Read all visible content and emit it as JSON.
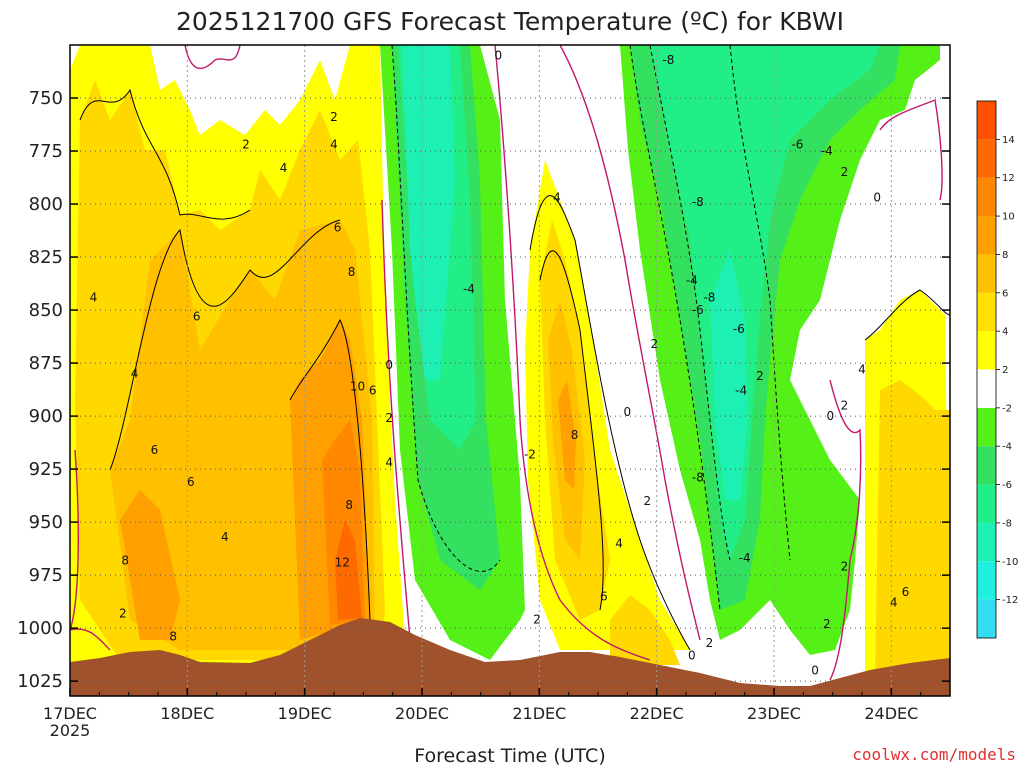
{
  "chart_data": {
    "type": "heatmap",
    "title": "2025121700 GFS Forecast Temperature (ºC) for KBWI",
    "xlabel": "Forecast Time (UTC)",
    "ylabel": "",
    "credit": "coolwx.com/models",
    "x_ticks": [
      "17DEC",
      "18DEC",
      "19DEC",
      "20DEC",
      "21DEC",
      "22DEC",
      "23DEC",
      "24DEC"
    ],
    "x_year": "2025",
    "xlim_days": [
      0,
      7.5
    ],
    "y_ticks": [
      750,
      775,
      800,
      825,
      850,
      875,
      900,
      925,
      950,
      975,
      1000,
      1025
    ],
    "ylim_hpa": [
      725,
      1032
    ],
    "colorbar": {
      "levels": [
        -14,
        -12,
        -10,
        -8,
        -6,
        -4,
        -2,
        2,
        4,
        6,
        8,
        10,
        12,
        14,
        16
      ],
      "tick_labels": [
        14,
        12,
        10,
        8,
        6,
        4,
        2,
        -2,
        -4,
        -6,
        -8,
        -10,
        -12
      ],
      "colors": [
        "#33ddf0",
        "#1ff0e0",
        "#1ef0b4",
        "#22ee88",
        "#33e060",
        "#55f018",
        "#ffffff",
        "#ffff00",
        "#ffe000",
        "#ffc000",
        "#ffa000",
        "#ff8800",
        "#ff6a00",
        "#ff5000"
      ]
    },
    "colors": {
      "terrain": "#a0522d",
      "zero_contour": "#c0186c",
      "contour": "#000000",
      "grid": "#888888"
    },
    "contour_labels": [
      {
        "day": 0.2,
        "p": 844,
        "t": "4"
      },
      {
        "day": 0.55,
        "p": 880,
        "t": "4"
      },
      {
        "day": 0.72,
        "p": 916,
        "t": "6"
      },
      {
        "day": 0.47,
        "p": 968,
        "t": "8"
      },
      {
        "day": 0.45,
        "p": 993,
        "t": "2"
      },
      {
        "day": 0.88,
        "p": 1004,
        "t": "8"
      },
      {
        "day": 1.08,
        "p": 853,
        "t": "6"
      },
      {
        "day": 1.03,
        "p": 931,
        "t": "6"
      },
      {
        "day": 1.32,
        "p": 957,
        "t": "4"
      },
      {
        "day": 1.5,
        "p": 772,
        "t": "2"
      },
      {
        "day": 1.82,
        "p": 783,
        "t": "4"
      },
      {
        "day": 2.38,
        "p": 942,
        "t": "8"
      },
      {
        "day": 2.25,
        "p": 759,
        "t": "2"
      },
      {
        "day": 2.25,
        "p": 772,
        "t": "4"
      },
      {
        "day": 2.28,
        "p": 811,
        "t": "6"
      },
      {
        "day": 2.4,
        "p": 832,
        "t": "8"
      },
      {
        "day": 2.45,
        "p": 886,
        "t": "10"
      },
      {
        "day": 2.58,
        "p": 888,
        "t": "6"
      },
      {
        "day": 2.32,
        "p": 969,
        "t": "12"
      },
      {
        "day": 2.72,
        "p": 876,
        "t": "0"
      },
      {
        "day": 2.72,
        "p": 901,
        "t": "2"
      },
      {
        "day": 2.72,
        "p": 922,
        "t": "4"
      },
      {
        "day": 3.4,
        "p": 840,
        "t": "-4"
      },
      {
        "day": 3.65,
        "p": 730,
        "t": "0"
      },
      {
        "day": 3.92,
        "p": 918,
        "t": "-2"
      },
      {
        "day": 3.98,
        "p": 996,
        "t": "2"
      },
      {
        "day": 4.15,
        "p": 797,
        "t": "4"
      },
      {
        "day": 4.3,
        "p": 909,
        "t": "8"
      },
      {
        "day": 4.55,
        "p": 985,
        "t": "6"
      },
      {
        "day": 4.68,
        "p": 960,
        "t": "4"
      },
      {
        "day": 4.92,
        "p": 940,
        "t": "2"
      },
      {
        "day": 4.75,
        "p": 898,
        "t": "0"
      },
      {
        "day": 4.98,
        "p": 866,
        "t": "2"
      },
      {
        "day": 5.1,
        "p": 732,
        "t": "-8"
      },
      {
        "day": 5.35,
        "p": 799,
        "t": "-8"
      },
      {
        "day": 5.3,
        "p": 836,
        "t": "-4"
      },
      {
        "day": 5.45,
        "p": 844,
        "t": "-8"
      },
      {
        "day": 5.35,
        "p": 850,
        "t": "-6"
      },
      {
        "day": 5.7,
        "p": 859,
        "t": "-6"
      },
      {
        "day": 5.72,
        "p": 888,
        "t": "-4"
      },
      {
        "day": 5.88,
        "p": 881,
        "t": "2"
      },
      {
        "day": 5.35,
        "p": 929,
        "t": "-8"
      },
      {
        "day": 5.75,
        "p": 967,
        "t": "-4"
      },
      {
        "day": 5.45,
        "p": 1007,
        "t": "2"
      },
      {
        "day": 5.3,
        "p": 1013,
        "t": "0"
      },
      {
        "day": 6.2,
        "p": 772,
        "t": "-6"
      },
      {
        "day": 6.45,
        "p": 775,
        "t": "-4"
      },
      {
        "day": 6.6,
        "p": 785,
        "t": "2"
      },
      {
        "day": 6.88,
        "p": 797,
        "t": "0"
      },
      {
        "day": 6.48,
        "p": 900,
        "t": "0"
      },
      {
        "day": 6.6,
        "p": 895,
        "t": "2"
      },
      {
        "day": 6.75,
        "p": 878,
        "t": "4"
      },
      {
        "day": 6.6,
        "p": 971,
        "t": "2"
      },
      {
        "day": 6.45,
        "p": 998,
        "t": "2"
      },
      {
        "day": 6.35,
        "p": 1020,
        "t": "0"
      },
      {
        "day": 7.02,
        "p": 988,
        "t": "4"
      },
      {
        "day": 7.12,
        "p": 983,
        "t": "6"
      }
    ]
  }
}
